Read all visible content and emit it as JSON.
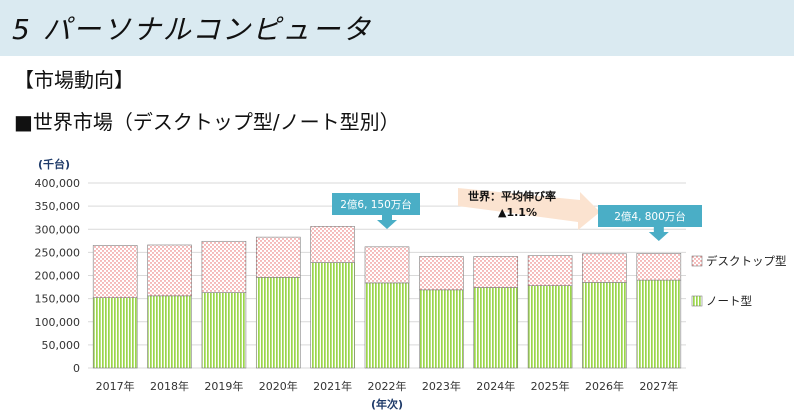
{
  "header": {
    "title": "5 パーソナルコンピュータ",
    "section": "【市場動向】",
    "subtitle": "■世界市場（デスクトップ型/ノート型別）"
  },
  "chart_data": {
    "type": "bar",
    "stacked": true,
    "unit_label": "(千台)",
    "xlabel": "(年次)",
    "ylabel": "",
    "ylim": [
      0,
      400000
    ],
    "yticks": [
      "400,000",
      "350,000",
      "300,000",
      "250,000",
      "200,000",
      "150,000",
      "100,000",
      "50,000",
      "0"
    ],
    "grid": true,
    "legend_position": "right",
    "categories": [
      "2017年",
      "2018年",
      "2019年",
      "2020年",
      "2021年",
      "2022年",
      "2023年",
      "2024年",
      "2025年",
      "2026年",
      "2027年"
    ],
    "series": [
      {
        "name": "ノート型",
        "color": "#9bd64b",
        "pattern": "vertical-stripes",
        "values": [
          152000,
          156000,
          163000,
          196000,
          228000,
          184000,
          169000,
          174000,
          178000,
          185000,
          190000
        ]
      },
      {
        "name": "デスクトップ型",
        "color": "#e85a5a",
        "pattern": "dots",
        "values": [
          113000,
          110000,
          111000,
          87000,
          78000,
          78000,
          72000,
          67000,
          65000,
          62000,
          58000
        ]
      }
    ],
    "annotations": {
      "callout_2022": "2億6, 150万台",
      "callout_2027": "2億4, 800万台",
      "growth_label": "世界：平均伸び率",
      "growth_value": "▲1.1%"
    }
  },
  "colors": {
    "title_bar": "#daeaf1",
    "callout": "#4aaec6",
    "arrow": "#fbe3d0",
    "grid": "#d9d9d9"
  }
}
